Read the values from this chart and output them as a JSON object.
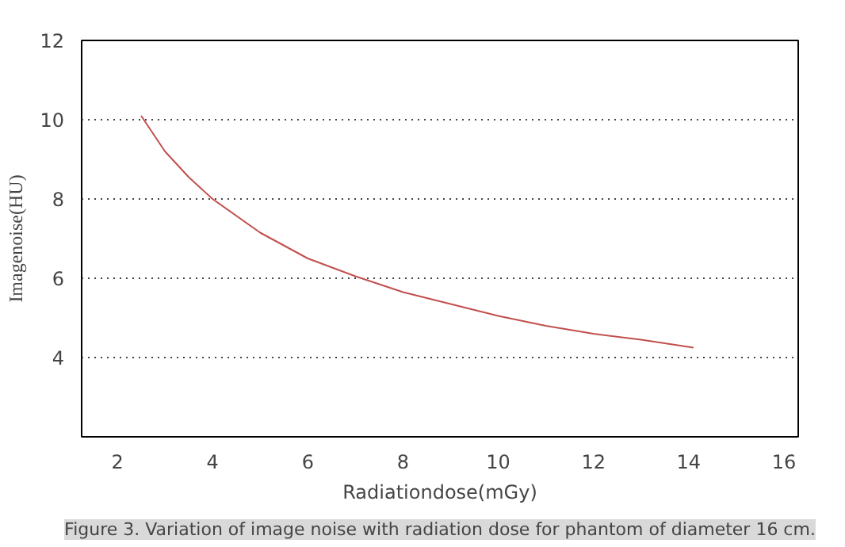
{
  "chart_data": {
    "type": "line",
    "xlabel": "Radiationdose(mGy)",
    "ylabel": "Imagenoise(HU)",
    "annotations": [
      "Figure 3. Variation of image noise with radiation dose for phantom of diameter 16 cm."
    ],
    "series": [
      {
        "color": "#c0504d",
        "x": [
          2.5,
          3,
          3.5,
          4,
          5,
          6,
          7,
          8,
          9,
          10,
          11,
          12,
          13,
          14.1
        ],
        "values": [
          10.1,
          9.2,
          8.55,
          8.0,
          7.15,
          6.5,
          6.05,
          5.65,
          5.35,
          5.05,
          4.8,
          4.6,
          4.45,
          4.25
        ]
      }
    ],
    "xlim": [
      1.25,
      16.3
    ],
    "ylim": [
      2,
      12
    ],
    "xticks": [
      2,
      4,
      6,
      8,
      10,
      12,
      14,
      16
    ],
    "yticks": [
      4,
      6,
      8,
      10,
      12
    ],
    "grid": "y",
    "marker": "none",
    "line_style": "solid"
  }
}
